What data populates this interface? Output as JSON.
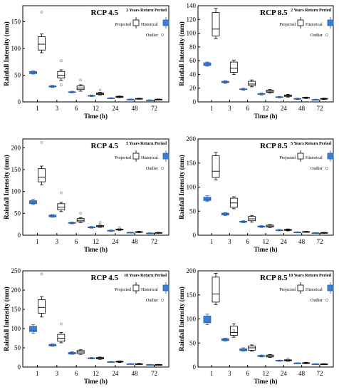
{
  "colors": {
    "historical": "#3a7fd8",
    "historical_edge": "#2b5fa8",
    "projected": "#ffffff",
    "outlier": "#999999",
    "axis": "#000000"
  },
  "legend": {
    "projected": "Projected",
    "historical": "Historical",
    "outlier": "Outlier"
  },
  "chart_data": [
    {
      "type": "box",
      "title": "RCP 4.5",
      "note": "2 Years Return Period",
      "xlabel": "Time (h)",
      "ylabel": "Rainfall Intensity (mm)",
      "categories": [
        "1",
        "3",
        "6",
        "12",
        "24",
        "48",
        "72"
      ],
      "ylim": [
        0,
        180
      ],
      "yticks": [
        0,
        50,
        100,
        150
      ],
      "historical": [
        {
          "min": 52,
          "q1": 53,
          "med": 55,
          "q3": 57,
          "max": 58
        },
        {
          "min": 27,
          "q1": 28,
          "med": 29,
          "q3": 30,
          "max": 31
        },
        {
          "min": 17,
          "q1": 18,
          "med": 18.5,
          "q3": 19,
          "max": 20
        },
        {
          "min": 10,
          "q1": 11,
          "med": 11.5,
          "q3": 12,
          "max": 13
        },
        {
          "min": 6,
          "q1": 6.5,
          "med": 7,
          "q3": 7.5,
          "max": 8
        },
        {
          "min": 3.5,
          "q1": 4,
          "med": 4.5,
          "q3": 5,
          "max": 5.5
        },
        {
          "min": 2.5,
          "q1": 3,
          "med": 3.2,
          "q3": 3.5,
          "max": 4
        }
      ],
      "projected": [
        {
          "min": 92,
          "q1": 97,
          "med": 108,
          "q3": 122,
          "max": 127,
          "outliers": [
            168
          ]
        },
        {
          "min": 40,
          "q1": 45,
          "med": 50,
          "q3": 57,
          "max": 60,
          "outliers": [
            77,
            32
          ]
        },
        {
          "min": 20,
          "q1": 23,
          "med": 26,
          "q3": 30,
          "max": 32,
          "outliers": [
            41
          ]
        },
        {
          "min": 13,
          "q1": 14,
          "med": 15.5,
          "q3": 17,
          "max": 18,
          "outliers": [
            22
          ]
        },
        {
          "min": 8,
          "q1": 8.5,
          "med": 9.5,
          "q3": 10.5,
          "max": 11
        },
        {
          "min": 5,
          "q1": 5.5,
          "med": 6,
          "q3": 6.5,
          "max": 7
        },
        {
          "min": 4,
          "q1": 4.2,
          "med": 4.6,
          "q3": 5,
          "max": 5.5
        }
      ]
    },
    {
      "type": "box",
      "title": "RCP 8.5",
      "note": "2 Years Return Period",
      "xlabel": "Time (h)",
      "ylabel": "Rainfall Intensity (mm)",
      "categories": [
        "1",
        "3",
        "6",
        "12",
        "24",
        "48",
        "72"
      ],
      "ylim": [
        0,
        140
      ],
      "yticks": [
        0,
        20,
        40,
        60,
        80,
        100,
        120,
        140
      ],
      "historical": [
        {
          "min": 52,
          "q1": 53,
          "med": 55,
          "q3": 57,
          "max": 58
        },
        {
          "min": 27,
          "q1": 28,
          "med": 29,
          "q3": 30,
          "max": 31
        },
        {
          "min": 17,
          "q1": 18,
          "med": 18.5,
          "q3": 19,
          "max": 20
        },
        {
          "min": 10,
          "q1": 11,
          "med": 11.5,
          "q3": 12,
          "max": 13
        },
        {
          "min": 6,
          "q1": 6.5,
          "med": 7,
          "q3": 7.5,
          "max": 8
        },
        {
          "min": 3.5,
          "q1": 4,
          "med": 4.5,
          "q3": 5,
          "max": 5.5
        },
        {
          "min": 2.5,
          "q1": 3,
          "med": 3.2,
          "q3": 3.5,
          "max": 4
        }
      ],
      "projected": [
        {
          "min": 92,
          "q1": 96,
          "med": 106,
          "q3": 130,
          "max": 136
        },
        {
          "min": 40,
          "q1": 43,
          "med": 49,
          "q3": 58,
          "max": 61
        },
        {
          "min": 22,
          "q1": 24,
          "med": 26,
          "q3": 30,
          "max": 32
        },
        {
          "min": 13,
          "q1": 14,
          "med": 15.5,
          "q3": 17,
          "max": 18
        },
        {
          "min": 7,
          "q1": 8,
          "med": 9,
          "q3": 10,
          "max": 11
        },
        {
          "min": 5,
          "q1": 5.5,
          "med": 6,
          "q3": 6.5,
          "max": 7
        },
        {
          "min": 3.5,
          "q1": 4,
          "med": 4.5,
          "q3": 5,
          "max": 5.5
        }
      ]
    },
    {
      "type": "box",
      "title": "RCP 4.5",
      "note": "5 Years Return Period",
      "xlabel": "Time (h)",
      "ylabel": "Rainfall Intensity (mm)",
      "categories": [
        "1",
        "3",
        "6",
        "12",
        "24",
        "48",
        "72"
      ],
      "ylim": [
        0,
        220
      ],
      "yticks": [
        0,
        50,
        100,
        150,
        200
      ],
      "historical": [
        {
          "min": 70,
          "q1": 72,
          "med": 75,
          "q3": 79,
          "max": 82
        },
        {
          "min": 41,
          "q1": 42,
          "med": 44,
          "q3": 46,
          "max": 47
        },
        {
          "min": 26,
          "q1": 27,
          "med": 28,
          "q3": 29,
          "max": 30
        },
        {
          "min": 16,
          "q1": 17,
          "med": 18,
          "q3": 19,
          "max": 20
        },
        {
          "min": 9,
          "q1": 10,
          "med": 10.5,
          "q3": 11,
          "max": 12
        },
        {
          "min": 5,
          "q1": 5.5,
          "med": 6,
          "q3": 6.5,
          "max": 7
        },
        {
          "min": 3.5,
          "q1": 4,
          "med": 4.5,
          "q3": 5,
          "max": 5.5
        }
      ],
      "projected": [
        {
          "min": 115,
          "q1": 122,
          "med": 133,
          "q3": 152,
          "max": 158,
          "outliers": [
            212
          ]
        },
        {
          "min": 54,
          "q1": 58,
          "med": 64,
          "q3": 72,
          "max": 75,
          "outliers": [
            97
          ]
        },
        {
          "min": 29,
          "q1": 31,
          "med": 34,
          "q3": 38,
          "max": 40,
          "outliers": [
            50
          ]
        },
        {
          "min": 18,
          "q1": 19,
          "med": 20,
          "q3": 22,
          "max": 23,
          "outliers": [
            29
          ]
        },
        {
          "min": 11,
          "q1": 12,
          "med": 13,
          "q3": 14,
          "max": 15,
          "outliers": [
            17
          ]
        },
        {
          "min": 6,
          "q1": 7,
          "med": 7.5,
          "q3": 8,
          "max": 9
        },
        {
          "min": 4.5,
          "q1": 5,
          "med": 5.5,
          "q3": 6,
          "max": 6.5
        }
      ]
    },
    {
      "type": "box",
      "title": "RCP 8.5",
      "note": "5 Years Return Period",
      "xlabel": "Time (h)",
      "ylabel": "Rainfall Intensity (mm)",
      "categories": [
        "1",
        "3",
        "6",
        "12",
        "24",
        "48",
        "72"
      ],
      "ylim": [
        0,
        200
      ],
      "yticks": [
        0,
        50,
        100,
        150,
        200
      ],
      "historical": [
        {
          "min": 70,
          "q1": 72,
          "med": 75,
          "q3": 79,
          "max": 82
        },
        {
          "min": 41,
          "q1": 42,
          "med": 44,
          "q3": 46,
          "max": 47
        },
        {
          "min": 26,
          "q1": 27,
          "med": 28,
          "q3": 29,
          "max": 30
        },
        {
          "min": 16,
          "q1": 17,
          "med": 18,
          "q3": 19,
          "max": 20
        },
        {
          "min": 9,
          "q1": 10,
          "med": 10.5,
          "q3": 11,
          "max": 12
        },
        {
          "min": 5,
          "q1": 5.5,
          "med": 6,
          "q3": 6.5,
          "max": 7
        },
        {
          "min": 3.5,
          "q1": 4,
          "med": 4.5,
          "q3": 5,
          "max": 5.5
        }
      ],
      "projected": [
        {
          "min": 115,
          "q1": 120,
          "med": 133,
          "q3": 165,
          "max": 172
        },
        {
          "min": 55,
          "q1": 58,
          "med": 67,
          "q3": 77,
          "max": 80
        },
        {
          "min": 27,
          "q1": 30,
          "med": 34,
          "q3": 39,
          "max": 41
        },
        {
          "min": 16,
          "q1": 17,
          "med": 19,
          "q3": 21,
          "max": 22
        },
        {
          "min": 9,
          "q1": 10,
          "med": 11,
          "q3": 12,
          "max": 13
        },
        {
          "min": 6,
          "q1": 6.5,
          "med": 7,
          "q3": 7.5,
          "max": 8
        },
        {
          "min": 4,
          "q1": 4.5,
          "med": 5,
          "q3": 5.5,
          "max": 6
        }
      ]
    },
    {
      "type": "box",
      "title": "RCP 4.5",
      "note": "10 Years Return Period",
      "xlabel": "Time (h)",
      "ylabel": "Rainfall Intensity (mm)",
      "categories": [
        "1",
        "3",
        "6",
        "12",
        "24",
        "48",
        "72"
      ],
      "ylim": [
        0,
        250
      ],
      "yticks": [
        0,
        50,
        100,
        150,
        200,
        250
      ],
      "historical": [
        {
          "min": 88,
          "q1": 92,
          "med": 96,
          "q3": 106,
          "max": 110
        },
        {
          "min": 54,
          "q1": 55,
          "med": 57,
          "q3": 59,
          "max": 60
        },
        {
          "min": 33,
          "q1": 34,
          "med": 36,
          "q3": 38,
          "max": 40
        },
        {
          "min": 21,
          "q1": 22,
          "med": 23,
          "q3": 24,
          "max": 25
        },
        {
          "min": 12,
          "q1": 12.5,
          "med": 13,
          "q3": 14,
          "max": 14.5
        },
        {
          "min": 7,
          "q1": 7.5,
          "med": 8,
          "q3": 8.5,
          "max": 9
        },
        {
          "min": 5,
          "q1": 5.5,
          "med": 6,
          "q3": 6.5,
          "max": 7
        }
      ],
      "projected": [
        {
          "min": 130,
          "q1": 140,
          "med": 155,
          "q3": 175,
          "max": 183,
          "outliers": [
            242
          ]
        },
        {
          "min": 63,
          "q1": 67,
          "med": 75,
          "q3": 85,
          "max": 90,
          "outliers": [
            112
          ]
        },
        {
          "min": 33,
          "q1": 35,
          "med": 39,
          "q3": 43,
          "max": 45
        },
        {
          "min": 20,
          "q1": 21,
          "med": 23,
          "q3": 25,
          "max": 26
        },
        {
          "min": 12,
          "q1": 13,
          "med": 14,
          "q3": 15,
          "max": 16
        },
        {
          "min": 7,
          "q1": 7.5,
          "med": 8,
          "q3": 8.5,
          "max": 9.5
        },
        {
          "min": 5,
          "q1": 5.5,
          "med": 6,
          "q3": 6.5,
          "max": 7
        }
      ]
    },
    {
      "type": "box",
      "title": "RCP 8.5",
      "note": "10 Years Return Period",
      "xlabel": "Time (h)",
      "ylabel": "Rainfall Intensity (mm)",
      "categories": [
        "1",
        "3",
        "6",
        "12",
        "24",
        "48",
        "72"
      ],
      "ylim": [
        0,
        200
      ],
      "yticks": [
        0,
        50,
        100,
        150,
        200
      ],
      "historical": [
        {
          "min": 88,
          "q1": 92,
          "med": 96,
          "q3": 106,
          "max": 110
        },
        {
          "min": 54,
          "q1": 55,
          "med": 57,
          "q3": 59,
          "max": 60
        },
        {
          "min": 33,
          "q1": 34,
          "med": 36,
          "q3": 38,
          "max": 40
        },
        {
          "min": 21,
          "q1": 22,
          "med": 23,
          "q3": 24,
          "max": 25
        },
        {
          "min": 12,
          "q1": 12.5,
          "med": 13,
          "q3": 14,
          "max": 14.5
        },
        {
          "min": 7,
          "q1": 7.5,
          "med": 8,
          "q3": 8.5,
          "max": 9
        },
        {
          "min": 5,
          "q1": 5.5,
          "med": 6,
          "q3": 6.5,
          "max": 7
        }
      ],
      "projected": [
        {
          "min": 130,
          "q1": 135,
          "med": 152,
          "q3": 187,
          "max": 195
        },
        {
          "min": 62,
          "q1": 66,
          "med": 72,
          "q3": 85,
          "max": 90,
          "outliers": [
            76
          ]
        },
        {
          "min": 33,
          "q1": 35,
          "med": 40,
          "q3": 44,
          "max": 46
        },
        {
          "min": 20,
          "q1": 21,
          "med": 23,
          "q3": 25,
          "max": 26
        },
        {
          "min": 12,
          "q1": 13,
          "med": 14,
          "q3": 15,
          "max": 16,
          "outliers": [
            17
          ]
        },
        {
          "min": 7,
          "q1": 7.5,
          "med": 8,
          "q3": 9,
          "max": 10
        },
        {
          "min": 5,
          "q1": 5.5,
          "med": 6,
          "q3": 6.5,
          "max": 7
        }
      ]
    }
  ]
}
